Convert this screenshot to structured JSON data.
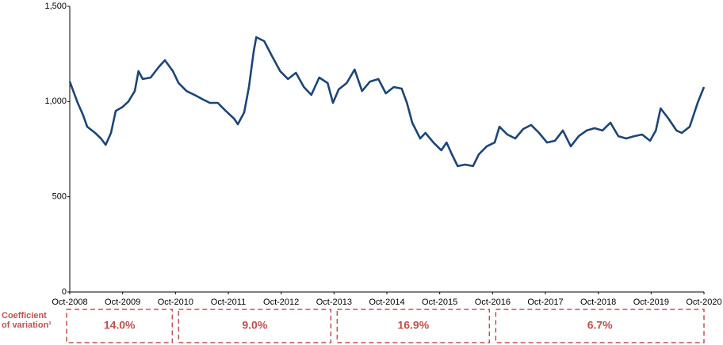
{
  "chart_data": {
    "type": "line",
    "x": [
      2008.75,
      2008.9,
      2009.0,
      2009.08,
      2009.23,
      2009.34,
      2009.43,
      2009.53,
      2009.62,
      2009.75,
      2009.86,
      2009.98,
      2010.05,
      2010.13,
      2010.28,
      2010.43,
      2010.55,
      2010.7,
      2010.81,
      2010.96,
      2011.11,
      2011.25,
      2011.4,
      2011.55,
      2011.7,
      2011.86,
      2011.93,
      2012.05,
      2012.14,
      2012.23,
      2012.28,
      2012.43,
      2012.57,
      2012.73,
      2012.88,
      2013.03,
      2013.18,
      2013.32,
      2013.47,
      2013.63,
      2013.73,
      2013.84,
      2013.99,
      2014.14,
      2014.28,
      2014.43,
      2014.59,
      2014.73,
      2014.88,
      2015.03,
      2015.13,
      2015.23,
      2015.38,
      2015.48,
      2015.63,
      2015.78,
      2015.88,
      2015.98,
      2016.09,
      2016.23,
      2016.38,
      2016.49,
      2016.64,
      2016.79,
      2016.88,
      2017.03,
      2017.18,
      2017.33,
      2017.48,
      2017.63,
      2017.78,
      2017.93,
      2018.08,
      2018.23,
      2018.38,
      2018.53,
      2018.68,
      2018.83,
      2018.98,
      2019.13,
      2019.28,
      2019.43,
      2019.58,
      2019.73,
      2019.84,
      2019.93,
      2020.08,
      2020.23,
      2020.33,
      2020.48,
      2020.63,
      2020.75
    ],
    "series": [
      {
        "color": "#1d4577",
        "values": [
          1105,
          993,
          930,
          868,
          835,
          806,
          773,
          835,
          951,
          972,
          1000,
          1055,
          1160,
          1118,
          1126,
          1180,
          1217,
          1160,
          1097,
          1055,
          1035,
          1014,
          993,
          993,
          951,
          910,
          881,
          943,
          1076,
          1263,
          1338,
          1317,
          1242,
          1160,
          1118,
          1151,
          1076,
          1035,
          1126,
          1097,
          993,
          1064,
          1097,
          1168,
          1055,
          1105,
          1118,
          1043,
          1076,
          1068,
          993,
          889,
          806,
          835,
          785,
          744,
          785,
          723,
          661,
          669,
          661,
          723,
          765,
          785,
          868,
          827,
          806,
          856,
          877,
          835,
          785,
          794,
          848,
          765,
          818,
          848,
          860,
          848,
          889,
          818,
          806,
          818,
          827,
          794,
          848,
          964,
          910,
          848,
          835,
          868,
          993,
          1076
        ]
      }
    ],
    "xlim": [
      2008.75,
      2020.75
    ],
    "xticks": [
      {
        "value": 2008.75,
        "label": "Oct-2008"
      },
      {
        "value": 2009.75,
        "label": "Oct-2009"
      },
      {
        "value": 2010.75,
        "label": "Oct-2010"
      },
      {
        "value": 2011.75,
        "label": "Oct-2011"
      },
      {
        "value": 2012.75,
        "label": "Oct-2012"
      },
      {
        "value": 2013.75,
        "label": "Oct-2013"
      },
      {
        "value": 2014.75,
        "label": "Oct-2014"
      },
      {
        "value": 2015.75,
        "label": "Oct-2015"
      },
      {
        "value": 2016.75,
        "label": "Oct-2016"
      },
      {
        "value": 2017.75,
        "label": "Oct-2017"
      },
      {
        "value": 2018.75,
        "label": "Oct-2018"
      },
      {
        "value": 2019.75,
        "label": "Oct-2019"
      },
      {
        "value": 2020.75,
        "label": "Oct-2020"
      }
    ],
    "ylim": [
      0,
      1500
    ],
    "yticks": [
      0,
      500,
      {
        "value": 1000,
        "label": "1,000"
      },
      {
        "value": 1500,
        "label": "1,500"
      }
    ],
    "grid": false,
    "coefficient_of_variation": {
      "label": [
        "Coefficient",
        "of variation¹"
      ],
      "color": "#c0504d",
      "periods": [
        {
          "start": 2008.75,
          "end": 2010.75,
          "value": 14.0,
          "value_label": "14.0%"
        },
        {
          "start": 2010.75,
          "end": 2013.75,
          "value": 9.0,
          "value_label": "9.0%"
        },
        {
          "start": 2013.75,
          "end": 2016.75,
          "value": 16.9,
          "value_label": "16.9%"
        },
        {
          "start": 2016.75,
          "end": 2020.75,
          "value": 6.7,
          "value_label": "6.7%"
        }
      ]
    }
  }
}
